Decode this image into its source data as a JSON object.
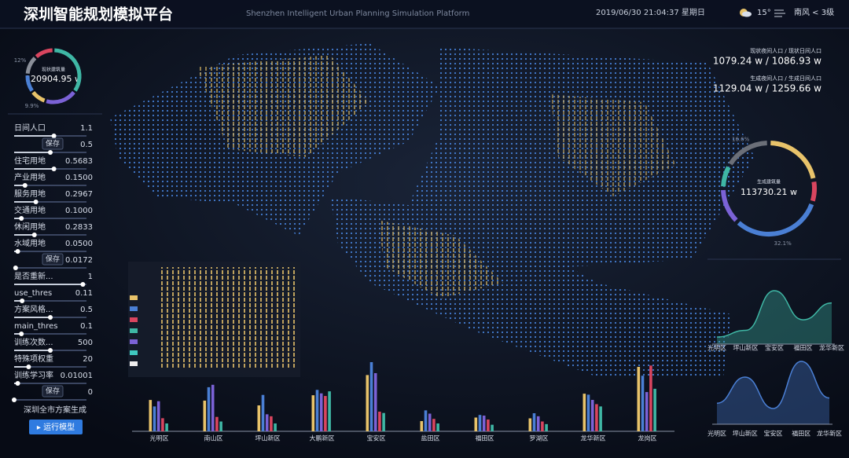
{
  "header": {
    "title": "深圳智能规划模拟平台",
    "subtitle": "Shenzhen  Intelligent Urban Planning Simulation Platform",
    "datetime": "2019/06/30  21:04:37  星期日",
    "temperature": "15°",
    "wind": "南风 < 3级"
  },
  "left_donut": {
    "label": "现状建筑量",
    "value": "120904.95 w",
    "segments": [
      {
        "value": 35,
        "color": "#3fb7a5"
      },
      {
        "value": 20,
        "color": "#7b62d6"
      },
      {
        "value": 9.9,
        "color": "#e8c36a",
        "value_label": "9.9%"
      },
      {
        "value": 11.1,
        "color": "#4a7fd4"
      },
      {
        "value": 12,
        "color": "#8a8f99",
        "value_label": "12%"
      },
      {
        "value": 12,
        "color": "#d9455f"
      }
    ]
  },
  "controls": {
    "sliders": [
      {
        "label": "日间人口",
        "value": "1.1"
      },
      {
        "button": "保存",
        "value": "0.5"
      },
      {
        "label": "住宅用地",
        "value": "0.5683"
      },
      {
        "label": "产业用地",
        "value": "0.1500"
      },
      {
        "label": "服务用地",
        "value": "0.2967"
      },
      {
        "label": "交通用地",
        "value": "0.1000"
      },
      {
        "label": "休闲用地",
        "value": "0.2833"
      },
      {
        "label": "水域用地",
        "value": "0.0500"
      },
      {
        "button": "保存",
        "value": "0.0172"
      },
      {
        "label": "是否重新...",
        "value": "1"
      },
      {
        "label": "use_thres",
        "value": "0.11"
      },
      {
        "label": "方案风格...",
        "value": "0.5"
      },
      {
        "label": "main_thres",
        "value": "0.1"
      },
      {
        "label": "训练次数...",
        "value": "500"
      },
      {
        "label": "特殊项权重",
        "value": "20"
      },
      {
        "label": "训练学习率",
        "value": "0.01001"
      },
      {
        "button": "保存",
        "value": "0"
      }
    ],
    "generate_label": "深圳全市方案生成",
    "run_button": "▸ 运行模型"
  },
  "stats": [
    {
      "label": "现状夜间人口 / 现状日间人口",
      "value": "1079.24 w / 1086.93 w"
    },
    {
      "label": "生成夜间人口 / 生成日间人口",
      "value": "1129.04 w / 1259.66 w"
    }
  ],
  "right_donut": {
    "label": "生成建筑量",
    "value": "113730.21 w",
    "segments": [
      {
        "value": 22,
        "color": "#e8c36a"
      },
      {
        "value": 8,
        "color": "#d9455f"
      },
      {
        "value": 32.1,
        "color": "#4a7fd4",
        "value_label": "32.1%"
      },
      {
        "value": 13,
        "color": "#7b62d6"
      },
      {
        "value": 8.3,
        "color": "#3fb7a5"
      },
      {
        "value": 16.6,
        "color": "#6b6f78",
        "value_label": "16.6%"
      }
    ]
  },
  "bar_chart": {
    "type": "bar",
    "categories": [
      "光明区",
      "南山区",
      "坪山新区",
      "大鹏新区",
      "宝安区",
      "盐田区",
      "福田区",
      "罗湖区",
      "龙华新区",
      "龙岗区"
    ],
    "series": [
      {
        "color": "#e8c36a",
        "values": [
          479,
          469,
          396,
          551,
          860,
          156,
          210,
          198,
          575,
          985
        ]
      },
      {
        "color": "#4a7fd4",
        "values": [
          380,
          674,
          556,
          633,
          1057,
          320,
          250,
          276,
          560,
          850
        ]
      },
      {
        "color": "#7b62d6",
        "values": [
          460,
          711,
          260,
          580,
          889,
          270,
          240,
          230,
          480,
          600
        ]
      },
      {
        "color": "#d9455f",
        "values": [
          200,
          220,
          230,
          540,
          300,
          190,
          180,
          150,
          415,
          1005
        ]
      },
      {
        "color": "#3fb7a5",
        "values": [
          120,
          150,
          120,
          611,
          280,
          120,
          100,
          110,
          380,
          650
        ]
      }
    ]
  },
  "area_charts": [
    {
      "type": "area",
      "color": "#3fb7a5",
      "categories": [
        "光明区",
        "坪山新区",
        "宝安区",
        "福田区",
        "龙华新区"
      ],
      "values": [
        180,
        350,
        1364,
        620,
        1050
      ]
    },
    {
      "type": "area",
      "color": "#4a7fd4",
      "categories": [
        "光明区",
        "坪山新区",
        "宝安区",
        "福田区",
        "龙华新区"
      ],
      "values": [
        400,
        900,
        300,
        1200,
        500
      ]
    }
  ]
}
